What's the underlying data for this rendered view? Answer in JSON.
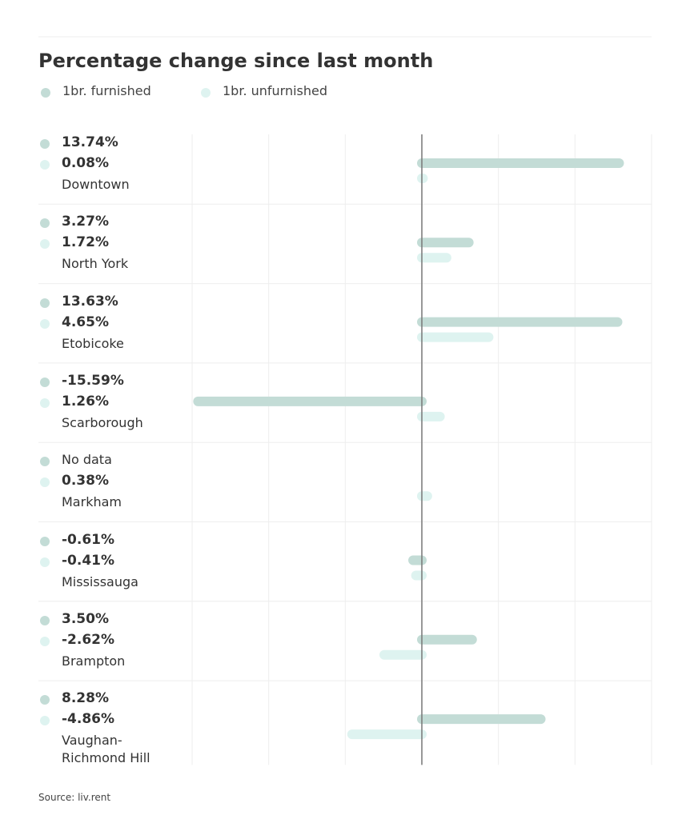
{
  "title": "Percentage change since last month",
  "source": "Source: liv.rent",
  "chart_data": {
    "type": "bar",
    "orientation": "horizontal",
    "categories": [
      "Downtown",
      "North York",
      "Etobicoke",
      "Scarborough",
      "Markham",
      "Mississauga",
      "Brampton",
      "Vaughan-Richmond Hill"
    ],
    "series": [
      {
        "name": "1br. furnished",
        "color": "#c3dcd6",
        "values": [
          13.74,
          3.27,
          13.63,
          -15.59,
          null,
          -0.61,
          3.5,
          8.28
        ],
        "value_labels": [
          "13.74%",
          "3.27%",
          "13.63%",
          "-15.59%",
          "No data",
          "-0.61%",
          "3.50%",
          "8.28%"
        ]
      },
      {
        "name": "1br. unfurnished",
        "color": "#def3f0",
        "values": [
          0.08,
          1.72,
          4.65,
          1.26,
          0.38,
          -0.41,
          -2.62,
          -4.86
        ],
        "value_labels": [
          "0.08%",
          "1.72%",
          "4.65%",
          "1.26%",
          "0.38%",
          "-0.41%",
          "-2.62%",
          "-4.86%"
        ]
      }
    ],
    "xlim": [
      -16,
      16
    ]
  }
}
